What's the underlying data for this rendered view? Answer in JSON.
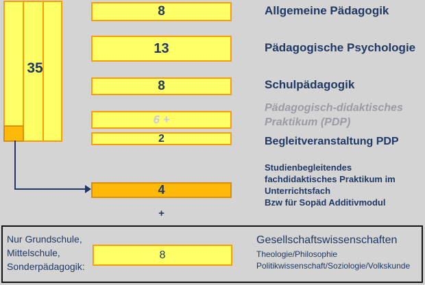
{
  "palette": {
    "background": "#D4D4D4",
    "box_fill": "#FFFF66",
    "box_border": "#FF9C00",
    "highlight_fill": "#FFB908",
    "highlight_border": "#DD8E00",
    "text_navy": "#1F3864",
    "muted_value": "#C9C9E0",
    "muted_label": "#9B9BA3",
    "footer_border": "#111111"
  },
  "left_total": {
    "value": "35"
  },
  "modules": [
    {
      "value": "8",
      "label": "Allgemeine Pädagogik"
    },
    {
      "value": "13",
      "label": "Pädagogische Psychologie"
    },
    {
      "value": "8",
      "label": "Schulpädagogik"
    },
    {
      "value": "6 +",
      "label": "Pädagogisch-didaktisches\nPraktikum (PDP)"
    },
    {
      "value": "2",
      "label": "Begleitveranstaltung PDP"
    },
    {
      "value": "4",
      "label": "Studienbegleitendes\nfachdidaktisches Praktikum im\nUnterrichtsfach\nBzw für Sopäd Additivmodul"
    }
  ],
  "plus_sign": "+",
  "footer": {
    "condition": "Nur Grundschule,\nMittelschule,\nSonderpädagogik:",
    "value": "8",
    "title": "Gesellschaftswissenschaften",
    "subjects_line1": "Theologie/Philosophie",
    "subjects_line2": "Politikwissenschaft/Soziologie/Volkskunde"
  }
}
